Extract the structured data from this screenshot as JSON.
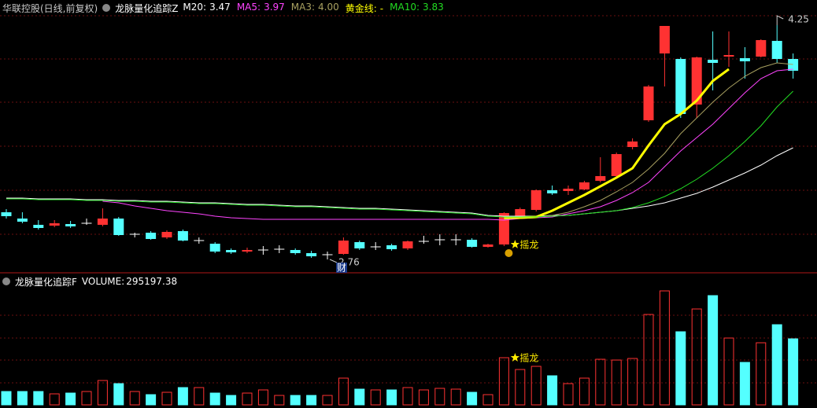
{
  "chart_data": [
    {
      "type": "candlestick",
      "title": "华联控股(日线,前复权)",
      "subtitle": "龙脉量化追踪Z",
      "up_color": "#ff3232",
      "down_color": "#54ffff",
      "flat_color": "#ffffff",
      "ylim": [
        2.685,
        4.41
      ],
      "open": [
        3.06,
        3.02,
        2.98,
        2.975,
        2.985,
        2.99,
        2.98,
        3.02,
        2.92,
        2.93,
        2.9,
        2.94,
        2.88,
        2.86,
        2.82,
        2.81,
        2.82,
        2.825,
        2.82,
        2.8,
        2.79,
        2.795,
        2.87,
        2.84,
        2.85,
        2.83,
        2.875,
        2.885,
        2.885,
        2.885,
        2.84,
        2.855,
        3.03,
        3.075,
        3.2,
        3.195,
        3.205,
        3.26,
        3.29,
        3.475,
        3.645,
        4.07,
        4.035,
        3.745,
        4.03,
        4.05,
        4.04,
        4.05,
        4.15,
        4.035
      ],
      "high": [
        3.08,
        3.06,
        3.01,
        3.01,
        3.005,
        3.02,
        3.085,
        3.03,
        2.93,
        2.94,
        2.945,
        2.95,
        2.9,
        2.87,
        2.83,
        2.835,
        2.845,
        2.85,
        2.83,
        2.815,
        2.81,
        2.9,
        2.88,
        2.87,
        2.86,
        2.88,
        2.91,
        2.92,
        2.92,
        2.895,
        2.86,
        3.06,
        3.09,
        3.205,
        3.23,
        3.23,
        3.26,
        3.41,
        3.44,
        3.53,
        3.87,
        4.24,
        4.045,
        4.05,
        4.21,
        4.21,
        4.11,
        4.16,
        4.25,
        4.07
      ],
      "low": [
        3.02,
        2.99,
        2.95,
        2.965,
        2.96,
        2.98,
        2.97,
        2.91,
        2.9,
        2.885,
        2.89,
        2.875,
        2.86,
        2.8,
        2.795,
        2.8,
        2.79,
        2.8,
        2.79,
        2.77,
        2.76,
        2.79,
        2.82,
        2.82,
        2.815,
        2.82,
        2.86,
        2.85,
        2.85,
        2.835,
        2.835,
        2.845,
        3.025,
        3.065,
        3.17,
        3.17,
        3.2,
        3.25,
        3.28,
        3.46,
        3.635,
        3.86,
        3.66,
        3.66,
        3.835,
        3.985,
        3.91,
        4.045,
        4.01,
        3.91
      ],
      "close": [
        3.035,
        3.0,
        2.96,
        2.99,
        2.97,
        2.99,
        3.02,
        2.915,
        2.92,
        2.89,
        2.935,
        2.88,
        2.88,
        2.81,
        2.805,
        2.82,
        2.82,
        2.825,
        2.8,
        2.78,
        2.79,
        2.88,
        2.83,
        2.84,
        2.825,
        2.875,
        2.875,
        2.885,
        2.885,
        2.84,
        2.855,
        3.055,
        3.08,
        3.2,
        3.18,
        3.21,
        3.25,
        3.29,
        3.43,
        3.51,
        3.86,
        4.245,
        3.685,
        4.045,
        4.01,
        4.06,
        4.02,
        4.155,
        4.035,
        3.96
      ],
      "series": [
        {
          "name": "M20:",
          "color": "#ffffff",
          "legend_value_label": "3.47",
          "values": [
            3.15,
            3.15,
            3.145,
            3.145,
            3.145,
            3.14,
            3.14,
            3.135,
            3.135,
            3.13,
            3.13,
            3.125,
            3.12,
            3.12,
            3.115,
            3.11,
            3.11,
            3.105,
            3.1,
            3.1,
            3.095,
            3.09,
            3.085,
            3.085,
            3.08,
            3.075,
            3.07,
            3.065,
            3.06,
            3.055,
            3.04,
            3.035,
            3.035,
            3.035,
            3.04,
            3.04,
            3.05,
            3.06,
            3.07,
            3.085,
            3.1,
            3.12,
            3.15,
            3.18,
            3.22,
            3.265,
            3.31,
            3.36,
            3.42,
            3.47
          ]
        },
        {
          "name": "MA5:",
          "color": "#ff44ff",
          "legend_value_label": "3.97",
          "values": [
            null,
            null,
            null,
            null,
            null,
            null,
            3.13,
            3.12,
            3.1,
            3.085,
            3.07,
            3.06,
            3.05,
            3.035,
            3.025,
            3.02,
            3.015,
            3.015,
            3.015,
            3.015,
            3.015,
            3.015,
            3.015,
            3.015,
            3.015,
            3.015,
            3.015,
            3.015,
            3.015,
            3.015,
            3.015,
            3.01,
            3.02,
            3.025,
            3.03,
            3.05,
            3.07,
            3.095,
            3.135,
            3.185,
            3.25,
            3.35,
            3.45,
            3.535,
            3.62,
            3.72,
            3.82,
            3.91,
            3.96,
            3.97
          ]
        },
        {
          "name": "MA3:",
          "color": "#a8a060",
          "legend_value_label": "4.00",
          "values": [
            null,
            null,
            null,
            null,
            null,
            null,
            null,
            null,
            null,
            null,
            null,
            null,
            null,
            null,
            null,
            null,
            null,
            null,
            null,
            null,
            null,
            null,
            null,
            null,
            null,
            null,
            null,
            null,
            null,
            null,
            null,
            3.015,
            3.025,
            3.03,
            3.04,
            3.06,
            3.095,
            3.135,
            3.19,
            3.25,
            3.335,
            3.435,
            3.56,
            3.66,
            3.76,
            3.85,
            3.925,
            3.98,
            4.01,
            4.0
          ]
        },
        {
          "name": "黄金线:",
          "color": "#ffff00",
          "legend_value_label": "-",
          "values": [
            null,
            null,
            null,
            null,
            null,
            null,
            null,
            null,
            null,
            null,
            null,
            null,
            null,
            null,
            null,
            null,
            null,
            null,
            null,
            null,
            null,
            null,
            null,
            null,
            null,
            null,
            null,
            null,
            null,
            null,
            null,
            3.025,
            3.025,
            3.03,
            3.07,
            3.12,
            3.17,
            3.225,
            3.28,
            3.34,
            3.485,
            3.62,
            3.685,
            3.77,
            3.895,
            3.97,
            null,
            null,
            null,
            null
          ]
        },
        {
          "name": "MA10:",
          "color": "#22dd22",
          "legend_value_label": "3.83",
          "values": [
            3.145,
            3.145,
            3.14,
            3.14,
            3.14,
            3.135,
            3.135,
            3.13,
            3.13,
            3.125,
            3.125,
            3.12,
            3.115,
            3.115,
            3.11,
            3.105,
            3.105,
            3.1,
            3.095,
            3.095,
            3.09,
            3.085,
            3.08,
            3.08,
            3.075,
            3.07,
            3.065,
            3.06,
            3.055,
            3.05,
            3.035,
            3.03,
            3.03,
            3.03,
            3.035,
            3.04,
            3.05,
            3.06,
            3.07,
            3.09,
            3.12,
            3.16,
            3.21,
            3.27,
            3.34,
            3.42,
            3.51,
            3.61,
            3.73,
            3.83
          ]
        }
      ],
      "annotations": [
        "摇龙",
        "财"
      ]
    },
    {
      "type": "bar",
      "title": "龙脉量化追踪F",
      "ylim": [
        0,
        516600
      ],
      "series": [
        {
          "name": "VOLUME:",
          "legend_value_label": "295197.38",
          "values": [
            59700,
            59700,
            59700,
            49200,
            52700,
            59700,
            108900,
            94900,
            59700,
            45700,
            56200,
            77300,
            77300,
            52700,
            42200,
            52700,
            66800,
            42200,
            42200,
            42200,
            42200,
            119500,
            70300,
            66800,
            66800,
            77300,
            66800,
            73800,
            70300,
            56200,
            45700,
            210800,
            158100,
            172200,
            130000,
            94900,
            119500,
            203800,
            200300,
            207300,
            404100,
            509500,
            326800,
            428700,
            488400,
            298700,
            189800,
            277600,
            358400,
            295197.38
          ]
        }
      ],
      "annotations": [
        "摇龙"
      ]
    }
  ]
}
